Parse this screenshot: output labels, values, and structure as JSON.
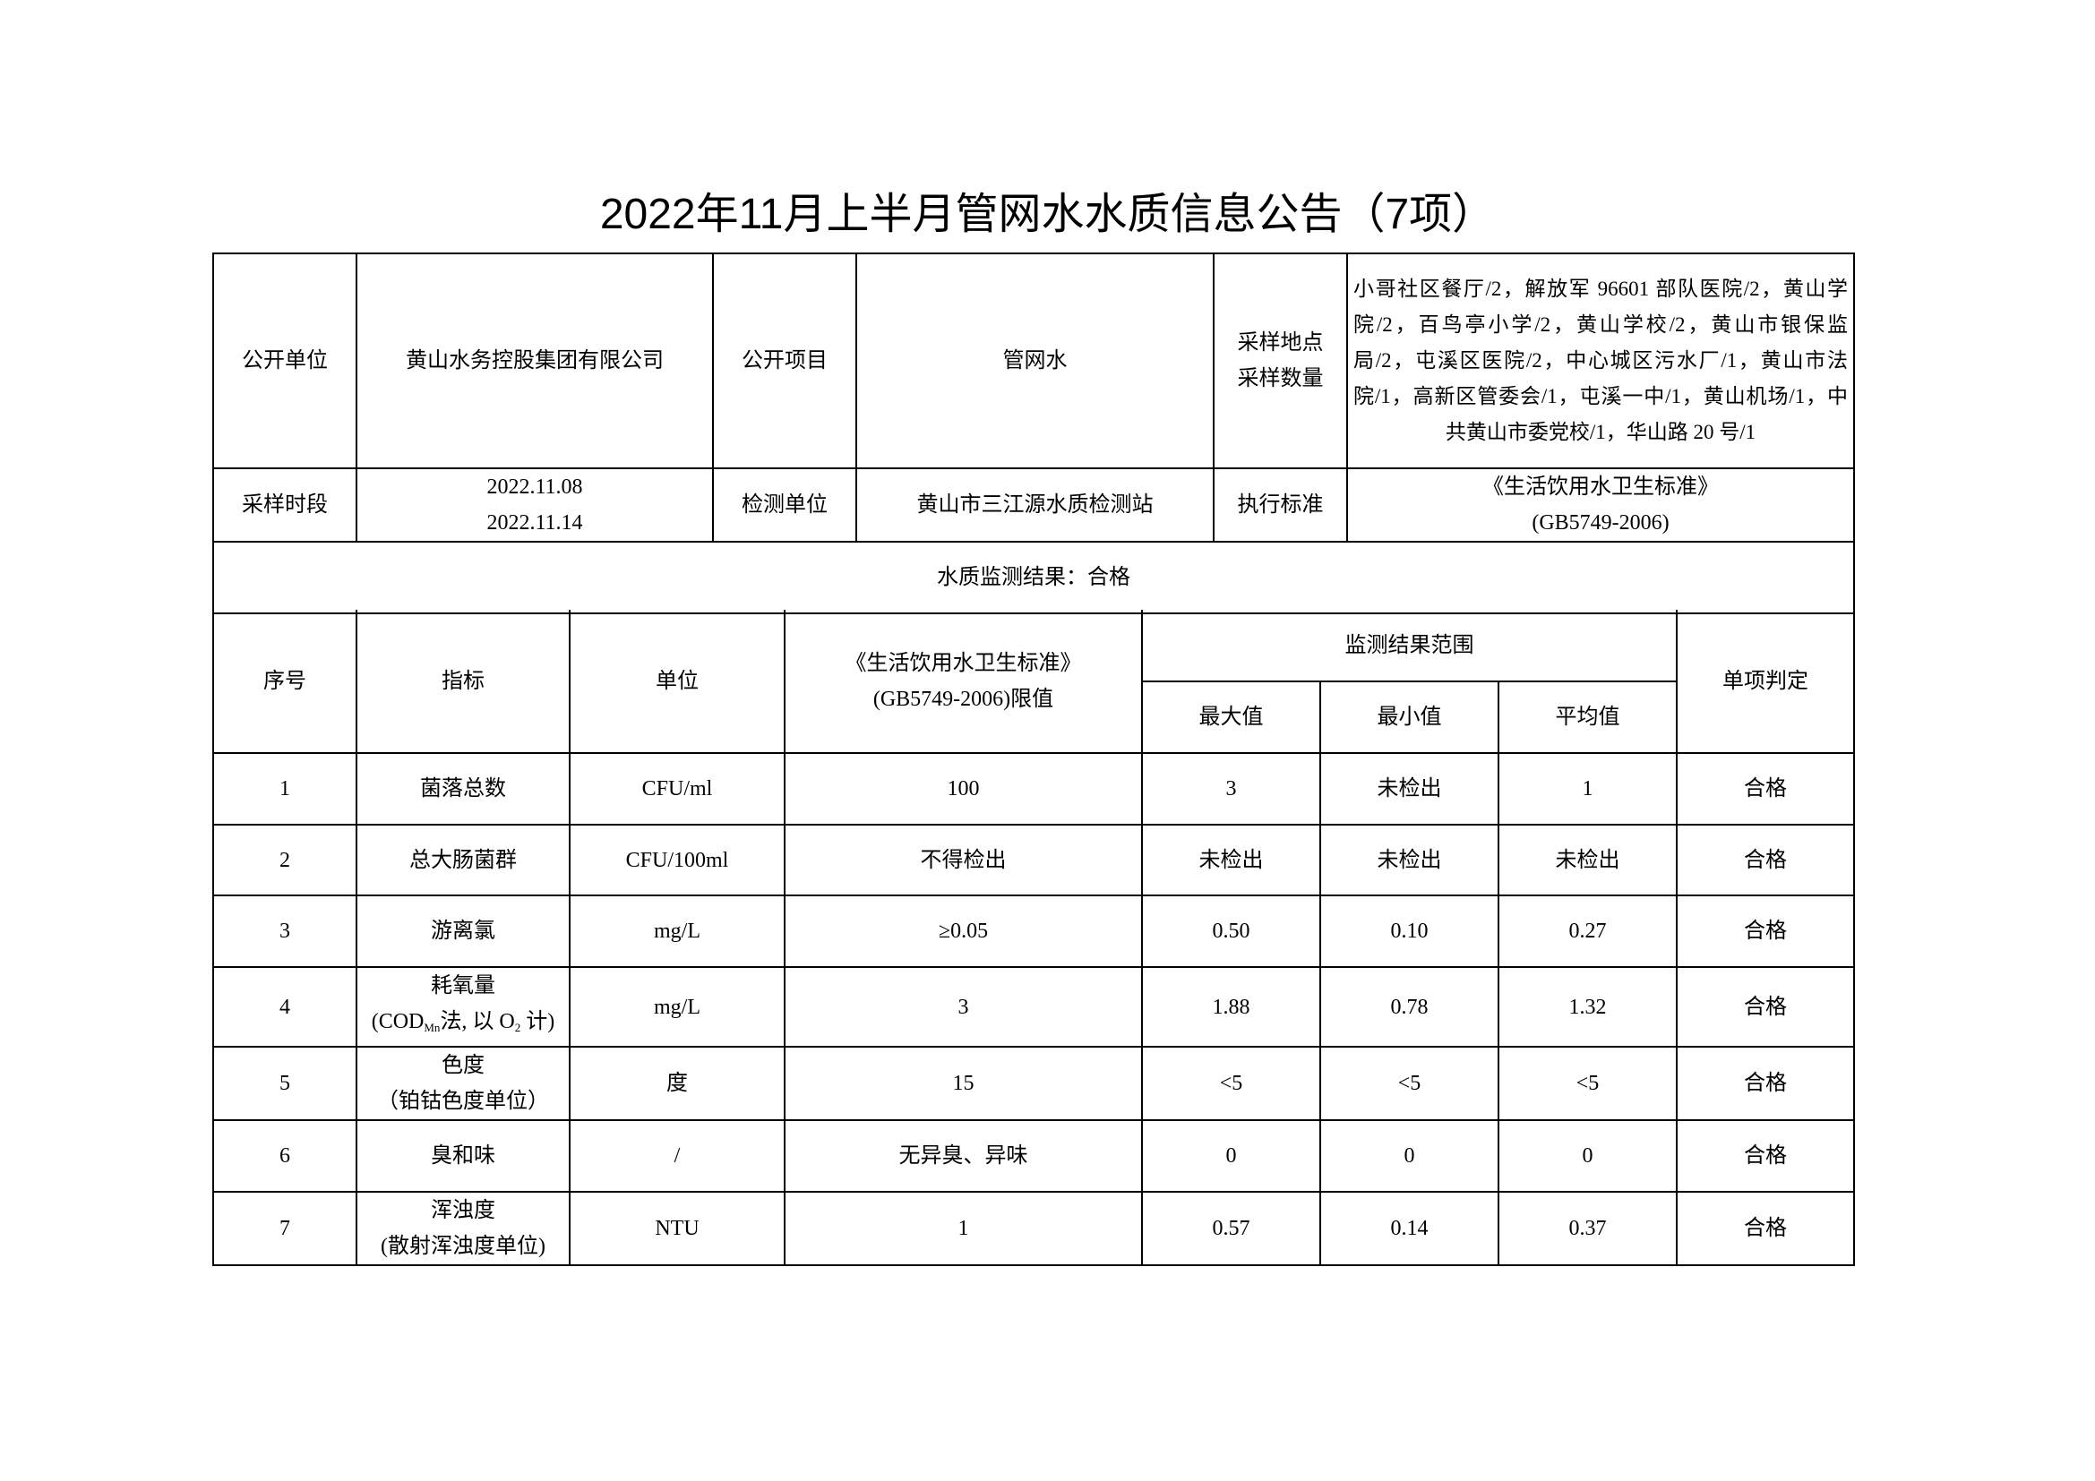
{
  "title": "2022年11月上半月管网水水质信息公告（7项）",
  "info": {
    "publisher_label": "公开单位",
    "publisher": "黄山水务控股集团有限公司",
    "item_label": "公开项目",
    "item": "管网水",
    "location_label_1": "采样地点",
    "location_label_2": "采样数量",
    "locations": "小哥社区餐厅/2，解放军 96601 部队医院/2，黄山学院/2，百鸟亭小学/2，黄山学校/2，黄山市银保监局/2，屯溪区医院/2，中心城区污水厂/1，黄山市法院/1，高新区管委会/1，屯溪一中/1，黄山机场/1，中共黄山市委党校/1，华山路 20 号/1",
    "period_label": "采样时段",
    "period_start": "2022.11.08",
    "period_end": "2022.11.14",
    "lab_label": "检测单位",
    "lab": "黄山市三江源水质检测站",
    "standard_label": "执行标准",
    "standard_1": "《生活饮用水卫生标准》",
    "standard_2": "(GB5749-2006)",
    "result": "水质监测结果：合格"
  },
  "headers": {
    "no": "序号",
    "indicator": "指标",
    "unit": "单位",
    "limit_1": "《生活饮用水卫生标准》",
    "limit_2": "(GB5749-2006)限值",
    "range": "监测结果范围",
    "max": "最大值",
    "min": "最小值",
    "avg": "平均值",
    "judge": "单项判定"
  },
  "rows": [
    {
      "no": "1",
      "name": "菌落总数",
      "sub": "",
      "unit": "CFU/ml",
      "limit": "100",
      "max": "3",
      "min": "未检出",
      "avg": "1",
      "judge": "合格"
    },
    {
      "no": "2",
      "name": "总大肠菌群",
      "sub": "",
      "unit": "CFU/100ml",
      "limit": "不得检出",
      "max": "未检出",
      "min": "未检出",
      "avg": "未检出",
      "judge": "合格"
    },
    {
      "no": "3",
      "name": "游离氯",
      "sub": "",
      "unit": "mg/L",
      "limit": "≥0.05",
      "max": "0.50",
      "min": "0.10",
      "avg": "0.27",
      "judge": "合格"
    },
    {
      "no": "4",
      "name": "耗氧量",
      "sub": "",
      "unit": "mg/L",
      "limit": "3",
      "max": "1.88",
      "min": "0.78",
      "avg": "1.32",
      "judge": "合格"
    },
    {
      "no": "5",
      "name": "色度",
      "sub": "（铂钴色度单位）",
      "unit": "度",
      "limit": "15",
      "max": "<5",
      "min": "<5",
      "avg": "<5",
      "judge": "合格"
    },
    {
      "no": "6",
      "name": "臭和味",
      "sub": "",
      "unit": "/",
      "limit": "无异臭、异味",
      "max": "0",
      "min": "0",
      "avg": "0",
      "judge": "合格"
    },
    {
      "no": "7",
      "name": "浑浊度",
      "sub": "(散射浑浊度单位)",
      "unit": "NTU",
      "limit": "1",
      "max": "0.57",
      "min": "0.14",
      "avg": "0.37",
      "judge": "合格"
    }
  ],
  "cod": {
    "a": "(COD",
    "b": "Mn",
    "c": "法, 以 O",
    "d": "2",
    "e": " 计)"
  }
}
